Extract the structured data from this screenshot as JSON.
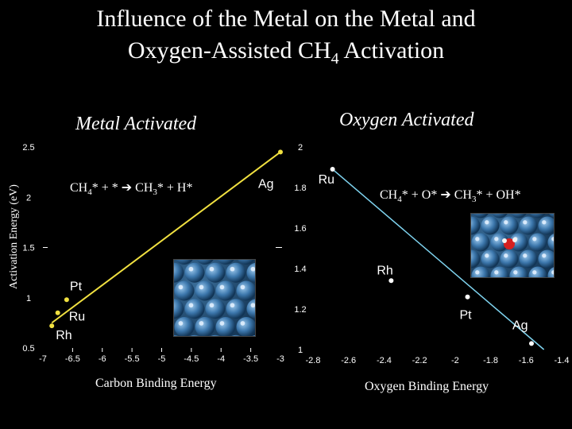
{
  "title_line1": "Influence of the Metal on the Metal and",
  "title_line2": "Oxygen-Assisted CH",
  "title_sub": "4",
  "title_line2_end": " Activation",
  "ylabel": "Activation Energy (eV)",
  "panel_left_title": "Metal Activated",
  "panel_right_title": "Oxygen Activated",
  "eq_left": {
    "a": "CH",
    "a_sub": "4",
    "b": "* + * ",
    "arrow": "➔",
    "c": " CH",
    "c_sub": "3",
    "d": "* + H*"
  },
  "eq_right": {
    "a": "CH",
    "a_sub": "4",
    "b": "* + O* ",
    "arrow": "➔",
    "c": " CH",
    "c_sub": "3",
    "d": "* + OH*"
  },
  "colors": {
    "left_series": "#f0e040",
    "right_series": "#7fd4f0",
    "background": "#000000",
    "text": "#ffffff"
  },
  "chart_data": [
    {
      "type": "scatter",
      "xlabel": "Carbon Binding Energy",
      "ylabel": "Activation Energy (eV)",
      "xlim": [
        -7,
        -3
      ],
      "ylim": [
        0.5,
        2.5
      ],
      "xticks": [
        "-7",
        "-6.5",
        "-6",
        "-5.5",
        "-5",
        "-4.5",
        "-4",
        "-3.5",
        "-3"
      ],
      "yticks": [
        "0.5",
        "1",
        "1.5",
        "2",
        "2.5"
      ],
      "points": [
        {
          "label": "Ag",
          "x": -3.0,
          "y": 2.45
        },
        {
          "label": "Pt",
          "x": -6.6,
          "y": 0.98
        },
        {
          "label": "Ru",
          "x": -6.75,
          "y": 0.85
        },
        {
          "label": "Rh",
          "x": -6.85,
          "y": 0.72
        }
      ],
      "fit_line": {
        "x": [
          -6.85,
          -3.0
        ],
        "y": [
          0.75,
          2.45
        ]
      }
    },
    {
      "type": "scatter",
      "xlabel": "Oxygen Binding Energy",
      "ylabel": "",
      "xlim": [
        -2.8,
        -1.4
      ],
      "ylim": [
        1,
        2
      ],
      "xticks": [
        "-2.8",
        "-2.6",
        "-2.4",
        "-2.2",
        "-2",
        "-1.8",
        "-1.6",
        "-1.4"
      ],
      "yticks": [
        "1",
        "1.2",
        "1.4",
        "1.6",
        "1.8",
        "2"
      ],
      "points": [
        {
          "label": "Ru",
          "x": -2.69,
          "y": 1.89
        },
        {
          "label": "Rh",
          "x": -2.36,
          "y": 1.34
        },
        {
          "label": "Pt",
          "x": -1.93,
          "y": 1.26
        },
        {
          "label": "Ag",
          "x": -1.57,
          "y": 1.03
        }
      ],
      "fit_line": {
        "x": [
          -2.69,
          -1.5
        ],
        "y": [
          1.89,
          1.0
        ]
      }
    }
  ]
}
